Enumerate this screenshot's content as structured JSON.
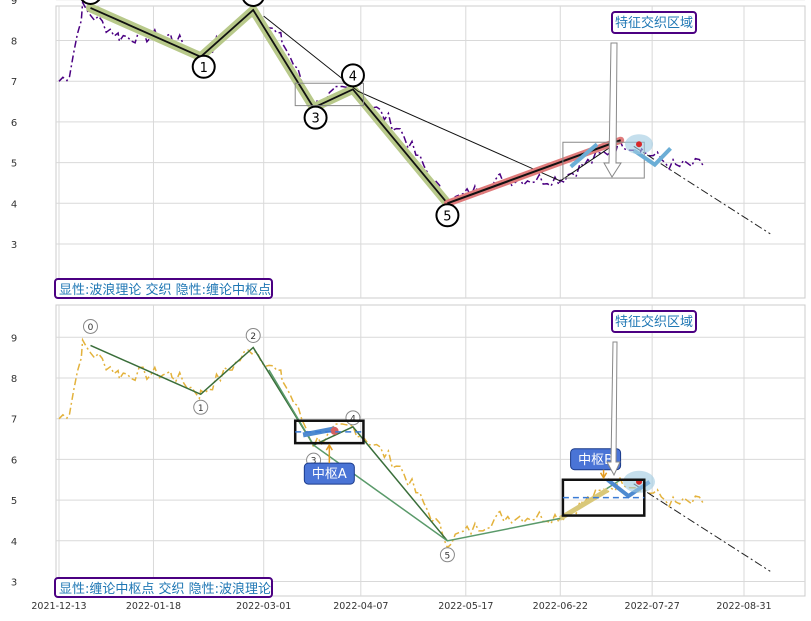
{
  "chart_data": [
    {
      "type": "line",
      "ylim": [
        2.7,
        9.8
      ],
      "yticks": [
        "3",
        "4",
        "5",
        "6",
        "7",
        "8",
        "9"
      ],
      "xticks": [
        "2021-12-13",
        "2022-01-18",
        "2022-03-01",
        "2022-04-07",
        "2022-05-17",
        "2022-06-22",
        "2022-07-27",
        "2022-08-31"
      ],
      "price_series_color": "#4b0082",
      "wave_points": [
        {
          "label": "0",
          "date": "2021-12-25",
          "value": 8.8
        },
        {
          "label": "1",
          "date": "2022-02-05",
          "value": 7.6
        },
        {
          "label": "2",
          "date": "2022-02-25",
          "value": 8.75
        },
        {
          "label": "3",
          "date": "2022-03-20",
          "value": 6.35
        },
        {
          "label": "4",
          "date": "2022-04-04",
          "value": 6.8
        },
        {
          "label": "5",
          "date": "2022-05-10",
          "value": 4.0
        }
      ],
      "wave_color": "#b8c98a",
      "fictional_wave": {
        "from_date": "2022-05-10",
        "from": 4.0,
        "to_date": "2022-07-15",
        "to": 5.55,
        "color": "#e07b7b"
      },
      "annotation_text": "特征交织区域",
      "legend_text": "显性:波浪理论 交织 隐性:缠论中枢点",
      "grid": true
    },
    {
      "type": "line",
      "ylim": [
        2.7,
        9.8
      ],
      "yticks": [
        "3",
        "4",
        "5",
        "6",
        "7",
        "8",
        "9"
      ],
      "xticks": [
        "2021-12-13",
        "2022-01-18",
        "2022-03-01",
        "2022-04-07",
        "2022-05-17",
        "2022-06-22",
        "2022-07-27",
        "2022-08-31"
      ],
      "price_series_color": "#e3b23c",
      "wave_points": [
        {
          "label": "0",
          "date": "2021-12-25",
          "value": 8.8
        },
        {
          "label": "1",
          "date": "2022-02-05",
          "value": 7.6
        },
        {
          "label": "2",
          "date": "2022-02-25",
          "value": 8.75
        },
        {
          "label": "3",
          "date": "2022-03-20",
          "value": 6.35
        },
        {
          "label": "4",
          "date": "2022-04-04",
          "value": 6.8
        },
        {
          "label": "5",
          "date": "2022-05-10",
          "value": 4.0
        }
      ],
      "zhongshu": [
        {
          "label": "中枢A",
          "start_date": "2022-03-13",
          "end_date": "2022-04-08",
          "low": 6.4,
          "high": 6.95
        },
        {
          "label": "中枢B",
          "start_date": "2022-06-23",
          "end_date": "2022-07-24",
          "low": 4.62,
          "high": 5.5
        }
      ],
      "annotation_text": "特征交织区域",
      "legend_text": "显性:缠论中枢点 交织 隐性:波浪理论",
      "grid": true
    }
  ]
}
